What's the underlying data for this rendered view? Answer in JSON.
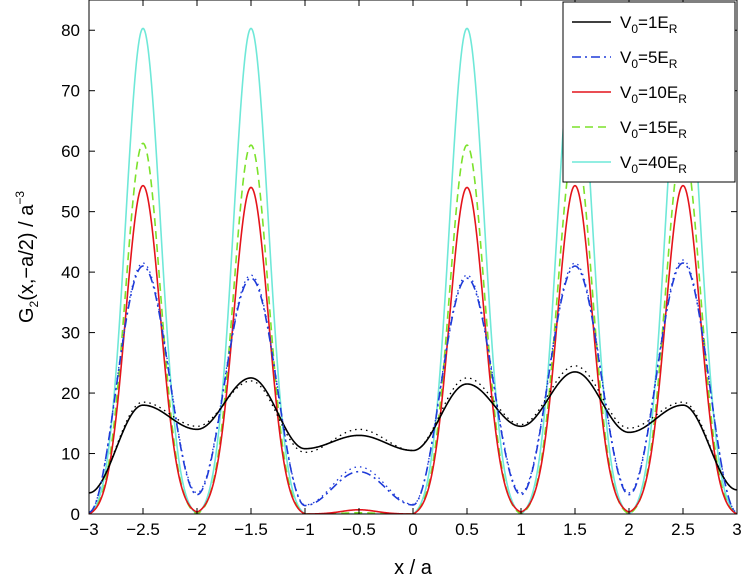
{
  "chart_data": {
    "type": "line",
    "xlabel": "x / a",
    "ylabel": {
      "base": "G",
      "sub": "2",
      "mid": "(x,−a/2) / a",
      "sup": "−3"
    },
    "xlim": [
      -3,
      3
    ],
    "ylim": [
      0,
      85
    ],
    "xticks": [
      -3,
      -2.5,
      -2,
      -1.5,
      -1,
      -0.5,
      0,
      0.5,
      1,
      1.5,
      2,
      2.5,
      3
    ],
    "xtick_labels": [
      "−3",
      "−2.5",
      "−2",
      "−1.5",
      "−1",
      "−0.5",
      "0",
      "0.5",
      "1",
      "1.5",
      "2",
      "2.5",
      "3"
    ],
    "yticks": [
      0,
      10,
      20,
      30,
      40,
      50,
      60,
      70,
      80
    ],
    "ytick_labels": [
      "0",
      "10",
      "20",
      "30",
      "40",
      "50",
      "60",
      "70",
      "80"
    ],
    "grid": false,
    "legend_position": "top-right",
    "series": [
      {
        "name": {
          "main": "V",
          "sub": "0",
          "rest": "=1E",
          "sub2": "R"
        },
        "color": "#000000",
        "dash": "solid",
        "peaks": [
          [
            -2.5,
            18
          ],
          [
            -1.5,
            22.5
          ],
          [
            -0.5,
            13
          ],
          [
            0.5,
            21.5
          ],
          [
            1.5,
            23.5
          ],
          [
            2.5,
            18
          ]
        ],
        "valleys": [
          [
            -3,
            3.5
          ],
          [
            -2,
            14
          ],
          [
            -1,
            10.8
          ],
          [
            0,
            10.5
          ],
          [
            1,
            14.5
          ],
          [
            2,
            13.5
          ],
          [
            3,
            4
          ]
        ]
      },
      {
        "name": {
          "main": "V",
          "sub": "0",
          "rest": "=5E",
          "sub2": "R"
        },
        "color": "#1f3bd8",
        "dash": "dashdot",
        "peaks": [
          [
            -2.5,
            41
          ],
          [
            -1.5,
            39
          ],
          [
            -0.5,
            7
          ],
          [
            0.5,
            39
          ],
          [
            1.5,
            41
          ],
          [
            2.5,
            41.5
          ]
        ],
        "valleys": [
          [
            -3,
            0.3
          ],
          [
            -2,
            3.2
          ],
          [
            -1,
            1.4
          ],
          [
            0,
            1.5
          ],
          [
            1,
            3.2
          ],
          [
            2,
            3.2
          ],
          [
            3,
            0.3
          ]
        ]
      },
      {
        "name": {
          "main": "V",
          "sub": "0",
          "rest": "=10E",
          "sub2": "R"
        },
        "color": "#e4141b",
        "dash": "solid",
        "peaks": [
          [
            -2.5,
            54.3
          ],
          [
            -1.5,
            54
          ],
          [
            -0.5,
            0.7
          ],
          [
            0.5,
            54
          ],
          [
            1.5,
            54.3
          ],
          [
            2.5,
            54.3
          ]
        ],
        "valleys": [
          [
            -3,
            0
          ],
          [
            -2,
            0.3
          ],
          [
            -1,
            0
          ],
          [
            0,
            0
          ],
          [
            1,
            0.3
          ],
          [
            2,
            0.3
          ],
          [
            3,
            0
          ]
        ]
      },
      {
        "name": {
          "main": "V",
          "sub": "0",
          "rest": "=15E",
          "sub2": "R"
        },
        "color": "#7be22a",
        "dash": "dashed",
        "peaks": [
          [
            -2.5,
            61.3
          ],
          [
            -1.5,
            61
          ],
          [
            -0.5,
            0.2
          ],
          [
            0.5,
            61
          ],
          [
            1.5,
            61.3
          ],
          [
            2.5,
            61.3
          ]
        ],
        "valleys": [
          [
            -3,
            0
          ],
          [
            -2,
            0
          ],
          [
            -1,
            0
          ],
          [
            0,
            0
          ],
          [
            1,
            0
          ],
          [
            2,
            0
          ],
          [
            3,
            0
          ]
        ]
      },
      {
        "name": {
          "main": "V",
          "sub": "0",
          "rest": "=40E",
          "sub2": "R"
        },
        "color": "#6fe8d8",
        "dash": "solid",
        "peaks": [
          [
            -2.5,
            80.3
          ],
          [
            -1.5,
            80.3
          ],
          [
            -0.5,
            0
          ],
          [
            0.5,
            80.3
          ],
          [
            1.5,
            80.3
          ],
          [
            2.5,
            80.3
          ]
        ],
        "valleys": [
          [
            -3,
            0
          ],
          [
            -2,
            0
          ],
          [
            -1,
            0
          ],
          [
            0,
            0
          ],
          [
            1,
            0
          ],
          [
            2,
            0
          ],
          [
            3,
            0
          ]
        ]
      },
      {
        "color": "#000000",
        "dash": "dotted",
        "peaks": [
          [
            -2.5,
            18.5
          ],
          [
            -1.5,
            22
          ],
          [
            -0.5,
            14
          ],
          [
            0.5,
            22.5
          ],
          [
            1.5,
            24.5
          ],
          [
            2.5,
            18.5
          ]
        ],
        "valleys": [
          [
            -3,
            3.5
          ],
          [
            -2,
            14.5
          ],
          [
            -1,
            10.2
          ],
          [
            0,
            10.5
          ],
          [
            1,
            14.8
          ],
          [
            2,
            14.2
          ],
          [
            3,
            4
          ]
        ]
      },
      {
        "color": "#1f3bd8",
        "dash": "dotted",
        "peaks": [
          [
            -2.5,
            41.5
          ],
          [
            -1.5,
            39.5
          ],
          [
            -0.5,
            7.8
          ],
          [
            0.5,
            39.5
          ],
          [
            1.5,
            41.5
          ],
          [
            2.5,
            42
          ]
        ],
        "valleys": [
          [
            -3,
            0.3
          ],
          [
            -2,
            3.5
          ],
          [
            -1,
            1.5
          ],
          [
            0,
            1.6
          ],
          [
            1,
            3.5
          ],
          [
            2,
            3.5
          ],
          [
            3,
            0.3
          ]
        ]
      }
    ]
  }
}
